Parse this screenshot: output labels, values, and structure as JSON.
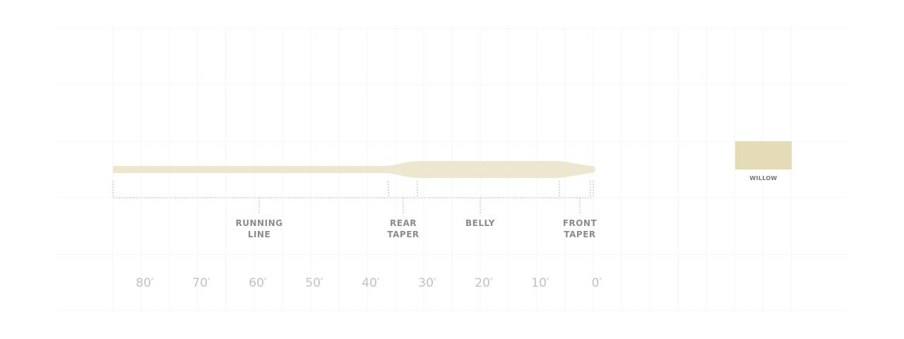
{
  "segments": [
    {
      "label": "RUNNING LINE"
    },
    {
      "label": "REAR TAPER"
    },
    {
      "label": "BELLY"
    },
    {
      "label": "FRONT TAPER"
    }
  ],
  "scale": [
    "80′",
    "70′",
    "60′",
    "50′",
    "40′",
    "30′",
    "20′",
    "10′",
    "0′"
  ],
  "colors": [
    {
      "label": "WILLOW"
    }
  ]
}
